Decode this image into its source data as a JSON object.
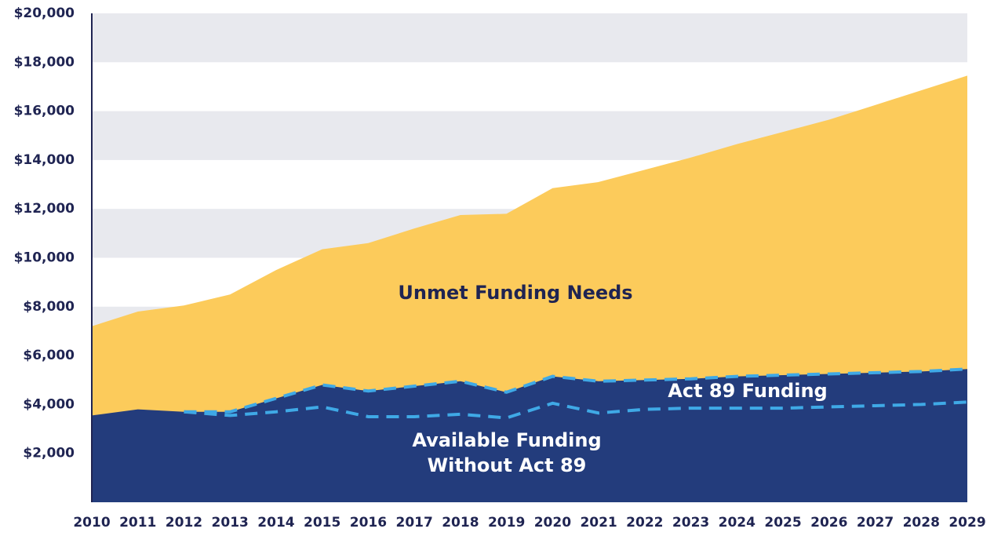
{
  "chart_data": {
    "type": "area",
    "categories": [
      "2010",
      "2011",
      "2012",
      "2013",
      "2014",
      "2015",
      "2016",
      "2017",
      "2018",
      "2019",
      "2020",
      "2021",
      "2022",
      "2023",
      "2024",
      "2025",
      "2026",
      "2027",
      "2028",
      "2029"
    ],
    "series": [
      {
        "color": "#fccb5b",
        "values": [
          7200,
          7800,
          8050,
          8500,
          9500,
          10350,
          10600,
          11200,
          11750,
          11800,
          12850,
          13100,
          13600,
          14100,
          14650,
          15150,
          15650,
          16250,
          16850,
          17450
        ]
      },
      {
        "color": "#233c7c",
        "values": [
          3550,
          3800,
          3700,
          3700,
          4250,
          4800,
          4550,
          4750,
          4950,
          4500,
          5150,
          4950,
          5000,
          5050,
          5150,
          5200,
          5250,
          5300,
          5350,
          5450
        ]
      },
      {
        "color": "#3fa9e6",
        "dashed": true,
        "values": [
          null,
          null,
          3700,
          3550,
          3700,
          3900,
          3500,
          3500,
          3600,
          3450,
          4050,
          3650,
          3800,
          3850,
          3850,
          3850,
          3900,
          3950,
          4000,
          4100
        ]
      }
    ],
    "annotations": [
      "Unmet Funding Needs",
      "Act 89 Funding",
      "Available Funding",
      "Without Act 89"
    ],
    "ylim": [
      0,
      20000
    ],
    "yticks": [
      {
        "value": 2000,
        "label": "$2,000"
      },
      {
        "value": 4000,
        "label": "$4,000"
      },
      {
        "value": 6000,
        "label": "$6,000"
      },
      {
        "value": 8000,
        "label": "$8,000"
      },
      {
        "value": 10000,
        "label": "$10,000"
      },
      {
        "value": 12000,
        "label": "$12,000"
      },
      {
        "value": 14000,
        "label": "$14,000"
      },
      {
        "value": 16000,
        "label": "$16,000"
      },
      {
        "value": 18000,
        "label": "$18,000"
      },
      {
        "value": 20000,
        "label": "$20,000"
      }
    ],
    "grid": "bands"
  }
}
